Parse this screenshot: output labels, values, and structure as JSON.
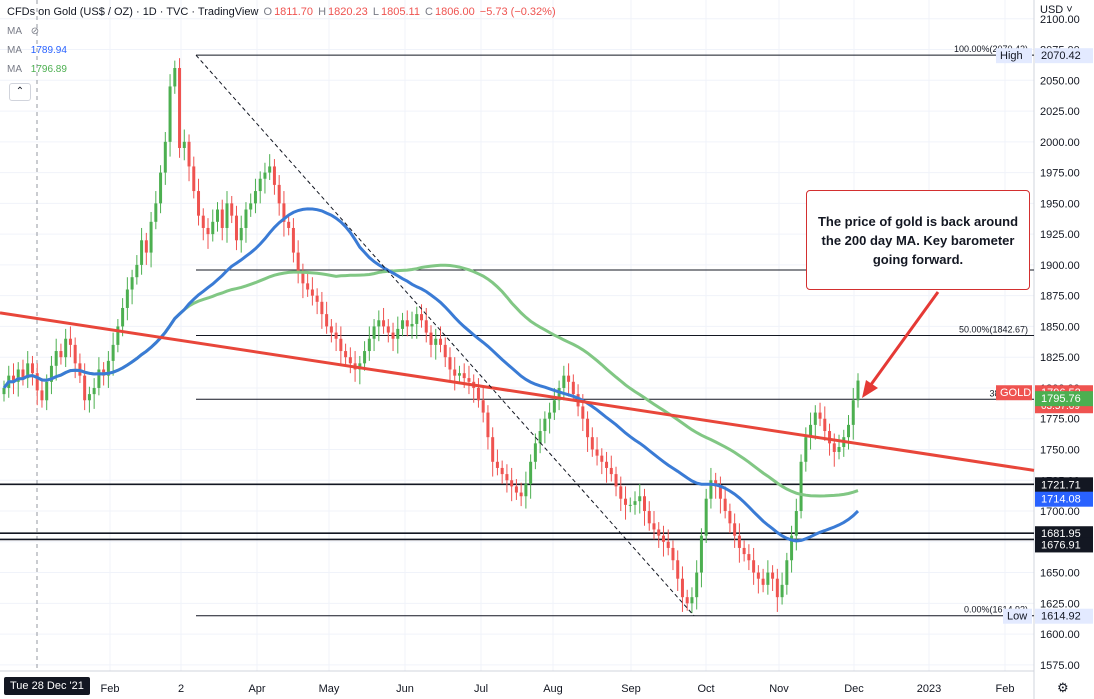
{
  "header": {
    "title": "CFDs on Gold (US$ / OZ) · 1D · TVC · TradingView",
    "open_label": "O",
    "open": "1811.70",
    "high_label": "H",
    "high": "1820.23",
    "low_label": "L",
    "low": "1805.11",
    "close_label": "C",
    "close": "1806.00",
    "change": "−5.73 (−0.32%)"
  },
  "indicators": [
    {
      "label": "MA",
      "value": "",
      "color": "#787b86"
    },
    {
      "label": "MA",
      "value": "1789.94",
      "color": "#2962ff"
    },
    {
      "label": "MA",
      "value": "1796.89",
      "color": "#4caf50"
    }
  ],
  "currency": "USD",
  "annotation": "The price of gold is back around the 200 day MA. Key barometer going forward.",
  "crosshair_date": "Tue 28 Dec '21",
  "colors": {
    "up": "#4caf50",
    "down": "#ef5350",
    "ma100": "#3a7bd5",
    "ma200": "#81c784",
    "trend": "#e8463a",
    "label_dark": "#131722",
    "label_blue": "#2962ff",
    "gold_tag": "#ef5350",
    "ma_tag": "#4caf50"
  },
  "chart_data": {
    "type": "candlestick",
    "y_ticks": [
      1575,
      1600,
      1625,
      1650,
      1675,
      1700,
      1725,
      1750,
      1775,
      1800,
      1825,
      1850,
      1875,
      1900,
      1925,
      1950,
      1975,
      2000,
      2025,
      2050,
      2075,
      2100
    ],
    "ylim": [
      1570,
      2112
    ],
    "x_labels": [
      "Feb",
      "2",
      "Apr",
      "May",
      "Jun",
      "Jul",
      "Aug",
      "Sep",
      "Oct",
      "Nov",
      "Dec",
      "2023",
      "Feb"
    ],
    "price_labels": [
      {
        "text": "High",
        "value": "2070.42"
      },
      {
        "text": "GOLD",
        "value": "1796.52",
        "sub": "03:57:09"
      },
      {
        "text": "",
        "value": "1795.76"
      },
      {
        "text": "",
        "value": "1721.71"
      },
      {
        "text": "",
        "value": "1714.08"
      },
      {
        "text": "",
        "value": "1681.95"
      },
      {
        "text": "",
        "value": "1676.91"
      },
      {
        "text": "Low",
        "value": "1614.92"
      }
    ],
    "fib_levels": [
      {
        "label": "100.00%(2070.42)",
        "value": 2070.42
      },
      {
        "label": "",
        "value": 1895.8
      },
      {
        "label": "50.00%(1842.67)",
        "value": 1842.67
      },
      {
        "label": "38.20%(1",
        "value": 1790.8
      },
      {
        "label": "0.00%(1614.92)",
        "value": 1614.92
      }
    ],
    "horizontal_lines": [
      1721.71,
      1681.95,
      1676.91
    ],
    "series_close": [
      1800,
      1810,
      1805,
      1815,
      1808,
      1820,
      1812,
      1798,
      1790,
      1805,
      1818,
      1830,
      1825,
      1840,
      1835,
      1820,
      1810,
      1790,
      1795,
      1800,
      1815,
      1810,
      1822,
      1835,
      1850,
      1865,
      1880,
      1890,
      1900,
      1920,
      1910,
      1935,
      1950,
      1975,
      2000,
      2045,
      2060,
      1995,
      2000,
      1980,
      1960,
      1940,
      1930,
      1925,
      1935,
      1945,
      1930,
      1950,
      1940,
      1920,
      1930,
      1945,
      1950,
      1960,
      1970,
      1975,
      1980,
      1965,
      1950,
      1935,
      1930,
      1910,
      1895,
      1885,
      1880,
      1875,
      1870,
      1860,
      1850,
      1845,
      1840,
      1830,
      1825,
      1820,
      1815,
      1820,
      1830,
      1840,
      1850,
      1855,
      1850,
      1845,
      1840,
      1848,
      1855,
      1850,
      1852,
      1860,
      1855,
      1845,
      1835,
      1840,
      1835,
      1825,
      1815,
      1810,
      1812,
      1808,
      1805,
      1800,
      1790,
      1780,
      1760,
      1740,
      1735,
      1730,
      1725,
      1720,
      1715,
      1712,
      1722,
      1740,
      1755,
      1765,
      1775,
      1780,
      1790,
      1800,
      1810,
      1805,
      1795,
      1785,
      1775,
      1760,
      1750,
      1745,
      1740,
      1735,
      1730,
      1720,
      1710,
      1705,
      1705,
      1708,
      1712,
      1700,
      1690,
      1685,
      1680,
      1675,
      1670,
      1660,
      1645,
      1630,
      1625,
      1630,
      1650,
      1680,
      1710,
      1725,
      1720,
      1710,
      1700,
      1690,
      1680,
      1670,
      1665,
      1660,
      1650,
      1645,
      1640,
      1650,
      1645,
      1630,
      1640,
      1660,
      1680,
      1700,
      1740,
      1760,
      1770,
      1780,
      1775,
      1765,
      1755,
      1748,
      1752,
      1760,
      1770,
      1790,
      1806
    ]
  }
}
